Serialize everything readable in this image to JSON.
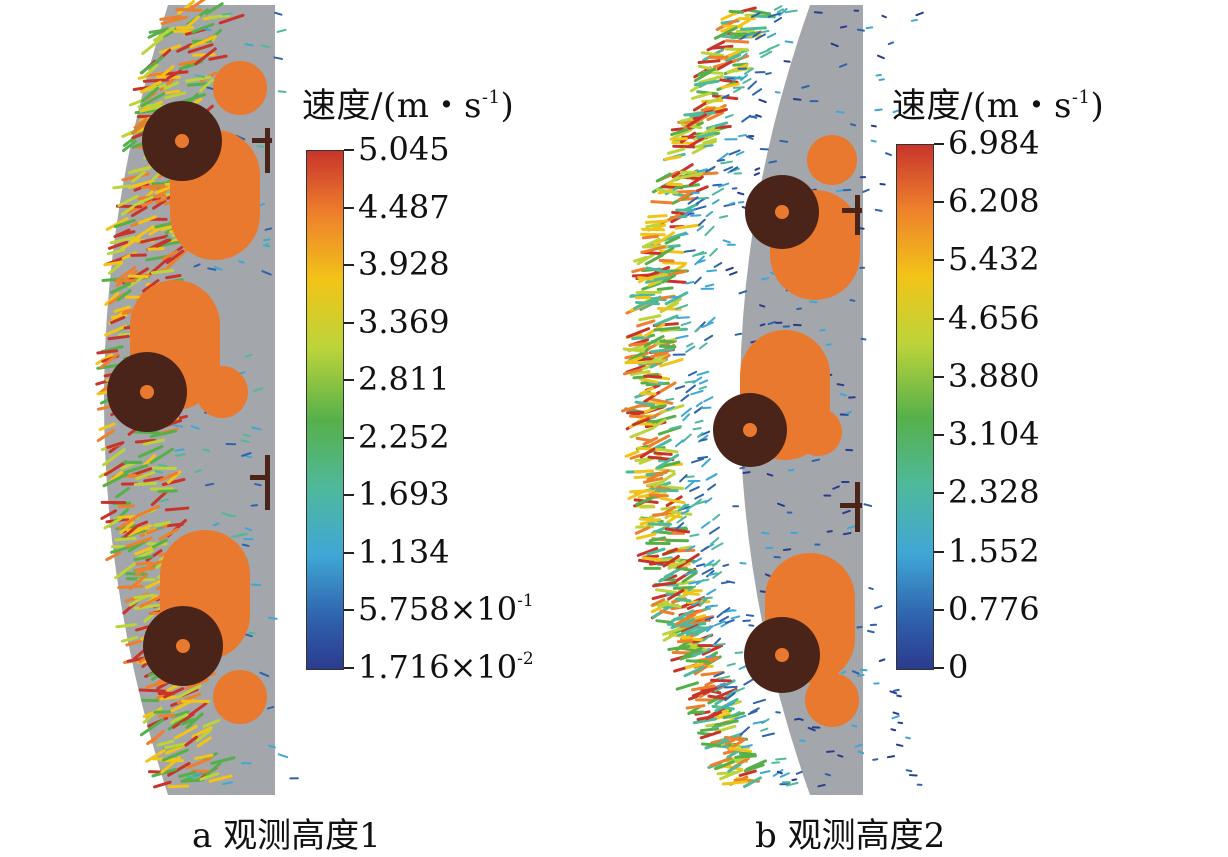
{
  "panels": [
    {
      "id": "a",
      "caption": "a  观测高度1",
      "legend": {
        "title_main": "速度/(m・s",
        "title_sup": "-1",
        "title_close": ")",
        "ticks": [
          {
            "value": "5.045"
          },
          {
            "value": "4.487"
          },
          {
            "value": "3.928"
          },
          {
            "value": "3.369"
          },
          {
            "value": "2.811"
          },
          {
            "value": "2.252"
          },
          {
            "value": "1.693"
          },
          {
            "value": "1.134"
          },
          {
            "value": "5.758×10",
            "exp": "-1"
          },
          {
            "value": "1.716×10",
            "exp": "-2"
          }
        ]
      }
    },
    {
      "id": "b",
      "caption": "b  观测高度2",
      "legend": {
        "title_main": "速度/(m・s",
        "title_sup": "-1",
        "title_close": ")",
        "ticks": [
          {
            "value": "6.984"
          },
          {
            "value": "6.208"
          },
          {
            "value": "5.432"
          },
          {
            "value": "4.656"
          },
          {
            "value": "3.880"
          },
          {
            "value": "3.104"
          },
          {
            "value": "2.328"
          },
          {
            "value": "1.552"
          },
          {
            "value": "0.776"
          },
          {
            "value": "0"
          }
        ]
      }
    }
  ],
  "colors": {
    "domain_gray": "#a3a6aa",
    "cylinder_orange": "#e8792e",
    "dark_ring": "#4a2418",
    "colormap": [
      "#c8342b",
      "#ee7f2c",
      "#f2c418",
      "#bcd43a",
      "#56b04a",
      "#4fb99b",
      "#3fa7d6",
      "#2f63ad",
      "#2b3b8e"
    ]
  }
}
